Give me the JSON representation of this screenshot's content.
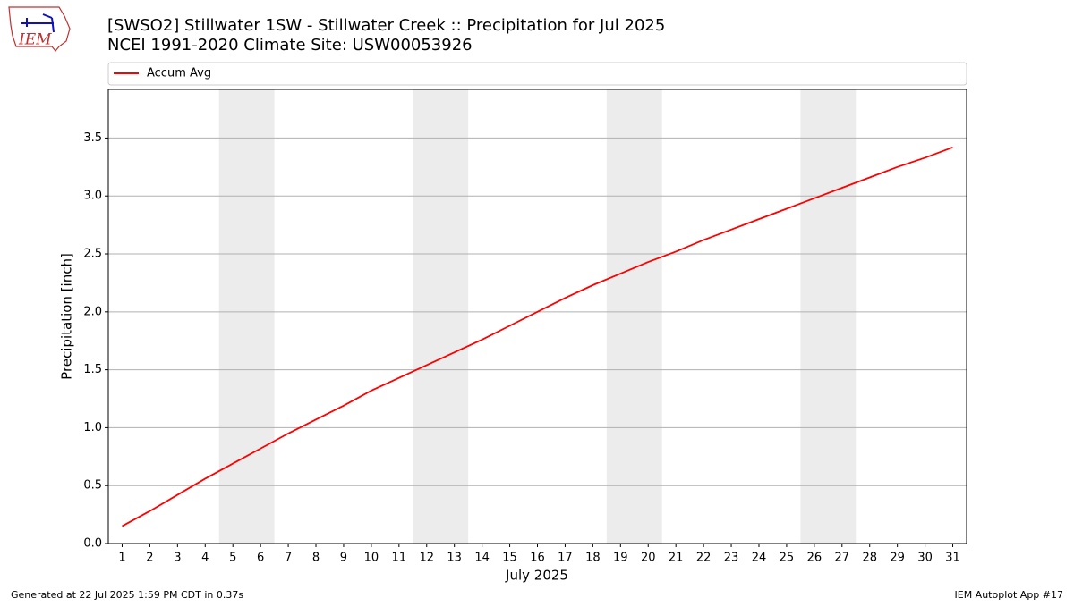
{
  "logo": "IEM",
  "footer": {
    "left": "Generated at 22 Jul 2025 1:59 PM CDT in 0.37s",
    "right": "IEM Autoplot App #17"
  },
  "chart_data": {
    "type": "line",
    "title": "[SWSO2] Stillwater 1SW - Stillwater Creek :: Precipitation for Jul 2025",
    "subtitle": "NCEI 1991-2020 Climate Site: USW00053926",
    "x_label": "July 2025",
    "y_label": "Precipitation [inch]",
    "x": [
      1,
      2,
      3,
      4,
      5,
      6,
      7,
      8,
      9,
      10,
      11,
      12,
      13,
      14,
      15,
      16,
      17,
      18,
      19,
      20,
      21,
      22,
      23,
      24,
      25,
      26,
      27,
      28,
      29,
      30,
      31
    ],
    "series": [
      {
        "name": "Accum Avg",
        "color": "#ff0000",
        "values": [
          0.15,
          0.28,
          0.42,
          0.56,
          0.69,
          0.82,
          0.95,
          1.07,
          1.19,
          1.32,
          1.43,
          1.54,
          1.65,
          1.76,
          1.88,
          2.0,
          2.12,
          2.23,
          2.33,
          2.43,
          2.52,
          2.62,
          2.71,
          2.8,
          2.89,
          2.98,
          3.07,
          3.16,
          3.25,
          3.33,
          3.42
        ]
      }
    ],
    "weekend_bands": [
      [
        4.5,
        6.5
      ],
      [
        11.5,
        13.5
      ],
      [
        18.5,
        20.5
      ],
      [
        25.5,
        27.5
      ]
    ],
    "band_color": "#ececec",
    "xlim": [
      0.5,
      31.5
    ],
    "ylim": [
      0,
      3.92
    ],
    "xticks": [
      1,
      2,
      3,
      4,
      5,
      6,
      7,
      8,
      9,
      10,
      11,
      12,
      13,
      14,
      15,
      16,
      17,
      18,
      19,
      20,
      21,
      22,
      23,
      24,
      25,
      26,
      27,
      28,
      29,
      30,
      31
    ],
    "yticks": [
      {
        "value": 0,
        "label": "0.0"
      },
      0.5,
      {
        "value": 1,
        "label": "1.0"
      },
      1.5,
      {
        "value": 2,
        "label": "2.0"
      },
      2.5,
      {
        "value": 3,
        "label": "3.0"
      },
      3.5
    ],
    "grid": "y",
    "legend": "top"
  }
}
